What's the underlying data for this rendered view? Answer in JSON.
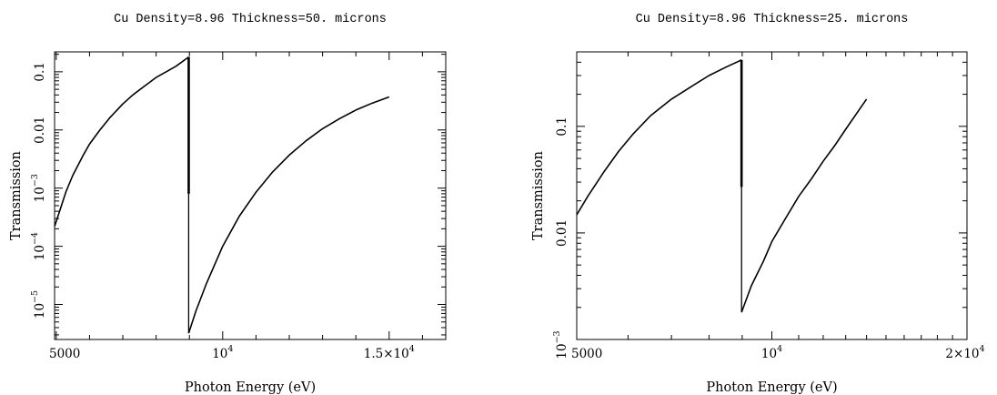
{
  "chart_data": [
    {
      "type": "line",
      "title": "Cu Density=8.96 Thickness=50. microns",
      "xlabel": "Photon Energy (eV)",
      "ylabel": "Transmission",
      "xlim": [
        4950,
        16700
      ],
      "ylim": [
        2.5e-06,
        0.22
      ],
      "xscale": "linear",
      "yscale": "log",
      "grid": false,
      "x_ticks": [
        {
          "value": 5000,
          "label": "5000"
        },
        {
          "value": 10000,
          "label": "10",
          "exp": "4",
          "mult": ""
        },
        {
          "value": 15000,
          "label": "1.5×10",
          "exp": "4",
          "mult": ""
        }
      ],
      "y_ticks": [
        {
          "value": 1e-05,
          "label": "10",
          "exp": "−5"
        },
        {
          "value": 0.0001,
          "label": "10",
          "exp": "−4"
        },
        {
          "value": 0.001,
          "label": "10",
          "exp": "−3"
        },
        {
          "value": 0.01,
          "label": "0.01",
          "exp": ""
        },
        {
          "value": 0.1,
          "label": "0.1",
          "exp": ""
        }
      ],
      "series": [
        {
          "x": [
            4950,
            5100,
            5300,
            5500,
            5800,
            6000,
            6300,
            6600,
            7000,
            7300,
            7600,
            8000,
            8300,
            8600,
            8979
          ],
          "y": [
            0.00022,
            0.0004,
            0.00089,
            0.00167,
            0.0036,
            0.0057,
            0.0098,
            0.016,
            0.028,
            0.04,
            0.054,
            0.08,
            0.1,
            0.125,
            0.18
          ]
        },
        {
          "x": [
            8979,
            8979,
            8979
          ],
          "y": [
            0.18,
            0.0008,
            3.2e-06
          ]
        },
        {
          "x": [
            8979,
            9200,
            9500,
            10000,
            10500,
            11000,
            11500,
            12000,
            12500,
            13000,
            13500,
            14000,
            14500,
            15000
          ],
          "y": [
            3.2e-06,
            7.8e-06,
            2.2e-05,
            0.0001,
            0.00033,
            0.00085,
            0.0019,
            0.0037,
            0.0065,
            0.0105,
            0.0155,
            0.022,
            0.029,
            0.037
          ]
        }
      ]
    },
    {
      "type": "line",
      "title": "Cu Density=8.96 Thickness=25. microns",
      "xlabel": "Photon Energy (eV)",
      "ylabel": "Transmission",
      "xlim": [
        5000,
        20000
      ],
      "ylim": [
        0.001,
        0.5
      ],
      "xscale": "log",
      "yscale": "log",
      "grid": false,
      "x_ticks": [
        {
          "value": 5000,
          "label": "5000",
          "exp": ""
        },
        {
          "value": 10000,
          "label": "10",
          "exp": "4"
        },
        {
          "value": 20000,
          "label": "2×10",
          "exp": "4"
        }
      ],
      "y_ticks": [
        {
          "value": 0.001,
          "label": "10",
          "exp": "−3"
        },
        {
          "value": 0.01,
          "label": "0.01",
          "exp": ""
        },
        {
          "value": 0.1,
          "label": "0.1",
          "exp": ""
        }
      ],
      "series": [
        {
          "x": [
            5000,
            5200,
            5500,
            5800,
            6100,
            6500,
            7000,
            7500,
            8000,
            8500,
            8979
          ],
          "y": [
            0.0148,
            0.022,
            0.037,
            0.058,
            0.084,
            0.126,
            0.18,
            0.235,
            0.3,
            0.36,
            0.42
          ]
        },
        {
          "x": [
            8979,
            8979,
            8979
          ],
          "y": [
            0.42,
            0.027,
            0.0018
          ]
        },
        {
          "x": [
            8979,
            9300,
            9700,
            10000,
            10500,
            11000,
            11500,
            12000,
            12500,
            13000,
            13500,
            14000
          ],
          "y": [
            0.0018,
            0.0032,
            0.0054,
            0.0083,
            0.0137,
            0.022,
            0.032,
            0.047,
            0.066,
            0.094,
            0.131,
            0.18
          ]
        }
      ]
    }
  ]
}
